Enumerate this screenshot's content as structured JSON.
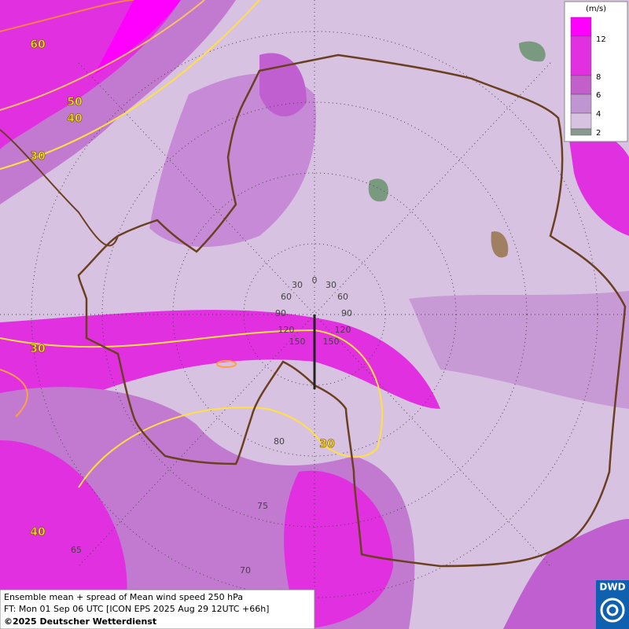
{
  "legend": {
    "unit": "(m/s)",
    "ticks": [
      12,
      8,
      6,
      4,
      2
    ]
  },
  "contour_labels": [
    60,
    50,
    40,
    30,
    30,
    30,
    40
  ],
  "grid_labels": [
    30,
    0,
    30,
    60,
    60,
    90,
    90,
    120,
    120,
    150,
    150,
    80,
    75,
    65,
    70
  ],
  "footer": {
    "line1": "Ensemble mean + spread of Mean wind speed 250 hPa",
    "line2": "FT: Mon 01 Sep 06 UTC [ICON EPS 2025 Aug 29 12UTC +66h]",
    "copyright": "©2025 Deutscher Wetterdienst"
  },
  "logo": "DWD"
}
